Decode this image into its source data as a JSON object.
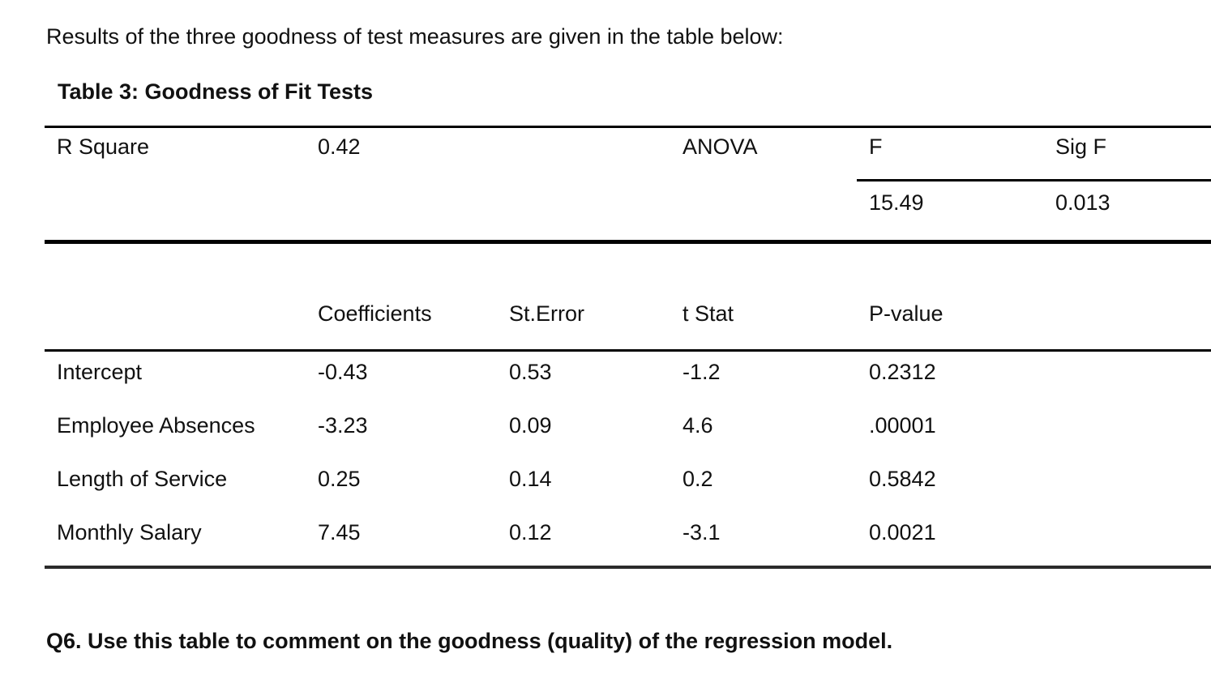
{
  "page": {
    "intro_text": "Results of the three goodness of test measures are given in the table below:",
    "question_text": "Q6. Use this table to comment on the goodness (quality) of the regression model."
  },
  "table": {
    "title": "Table 3: Goodness of Fit Tests",
    "fit_section": {
      "r_square_label": "R Square",
      "r_square_value": "0.42",
      "anova_label": "ANOVA",
      "f_label": "F",
      "sig_f_label": "Sig F",
      "f_value": "15.49",
      "sig_f_value": "0.013"
    },
    "coefficients_section": {
      "headers": [
        "Coefficients",
        "St.Error",
        "t Stat",
        "P-value"
      ],
      "rows": [
        {
          "label": "Intercept",
          "coefficient": "-0.43",
          "st_error": "0.53",
          "t_stat": "-1.2",
          "p_value": "0.2312"
        },
        {
          "label": "Employee Absences",
          "coefficient": "-3.23",
          "st_error": "0.09",
          "t_stat": "4.6",
          "p_value": ".00001"
        },
        {
          "label": "Length of Service",
          "coefficient": "0.25",
          "st_error": "0.14",
          "t_stat": "0.2",
          "p_value": "0.5842"
        },
        {
          "label": "Monthly Salary",
          "coefficient": "7.45",
          "st_error": "0.12",
          "t_stat": "-3.1",
          "p_value": "0.0021"
        }
      ]
    }
  }
}
